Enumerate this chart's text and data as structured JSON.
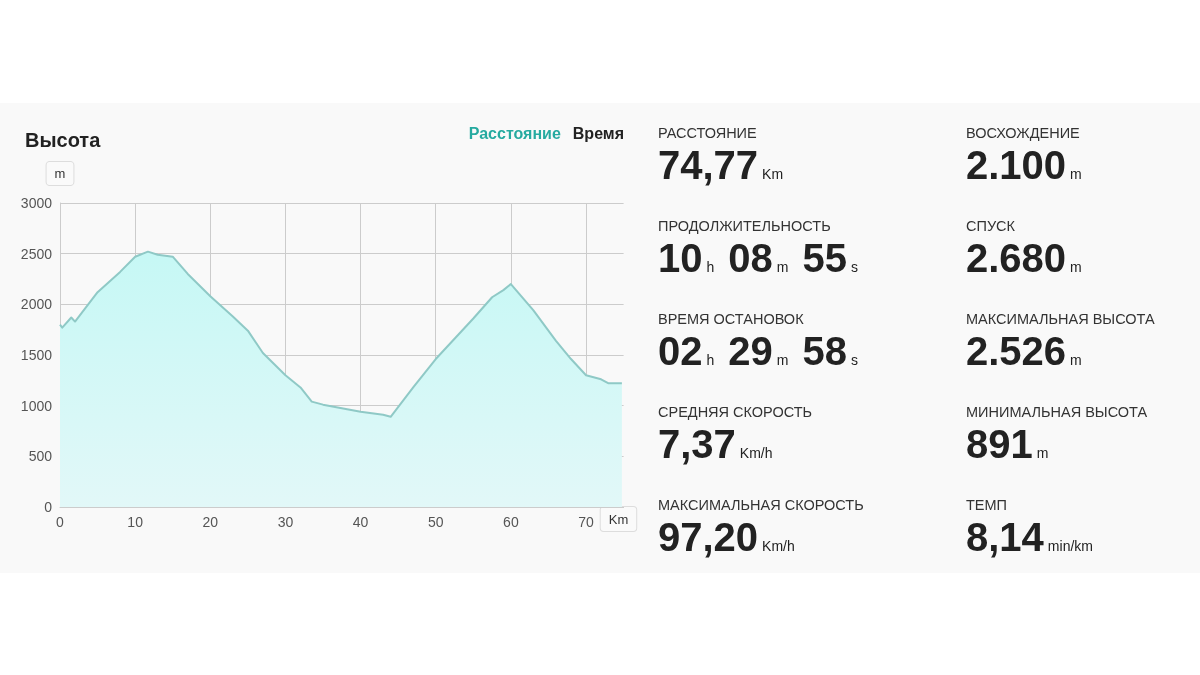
{
  "chart_data": [
    {
      "type": "area",
      "title": "Высота",
      "ylabel": "m",
      "xlabel": "Km",
      "annotations": [
        "Расстояние",
        "Время"
      ],
      "x": [
        0,
        0.3,
        1.5,
        2,
        5,
        8,
        10,
        11.7,
        13,
        15,
        17,
        20,
        23,
        25,
        27,
        30,
        32,
        33.5,
        35,
        40,
        43,
        44,
        47,
        50,
        55,
        57.5,
        59,
        60,
        63,
        66,
        68,
        70,
        72,
        73,
        74.77
      ],
      "series": [
        {
          "color": "#8fc9c6",
          "values": [
            1800,
            1770,
            1870,
            1830,
            2120,
            2320,
            2470,
            2520,
            2490,
            2470,
            2300,
            2080,
            1880,
            1740,
            1520,
            1300,
            1180,
            1040,
            1010,
            940,
            910,
            890,
            1180,
            1460,
            1860,
            2070,
            2140,
            2200,
            1940,
            1640,
            1460,
            1300,
            1260,
            1220,
            1220
          ]
        }
      ],
      "xlim": [
        0,
        75
      ],
      "xticks": [
        0,
        10,
        20,
        30,
        40,
        50,
        60,
        70
      ],
      "ylim": [
        0,
        3000
      ],
      "yticks": [
        0,
        500,
        1000,
        1500,
        2000,
        2500,
        3000
      ],
      "grid": true,
      "marker": "none"
    },
    {
      "type": "other",
      "annotations": [
        "РАССТОЯНИЕ",
        "74,77",
        "Km"
      ]
    },
    {
      "type": "other",
      "annotations": [
        "ВОСХОЖДЕНИЕ",
        "2.100",
        "m"
      ]
    },
    {
      "type": "other",
      "annotations": [
        "ПРОДОЛЖИТЕЛЬНОСТЬ",
        "10",
        "h",
        "08",
        "m",
        "55",
        "s"
      ]
    },
    {
      "type": "other",
      "annotations": [
        "СПУСК",
        "2.680",
        "m"
      ]
    },
    {
      "type": "other",
      "annotations": [
        "ВРЕМЯ ОСТАНОВОК",
        "02",
        "h",
        "29",
        "m",
        "58",
        "s"
      ]
    },
    {
      "type": "other",
      "annotations": [
        "МАКСИМАЛЬНАЯ ВЫСОТА",
        "2.526",
        "m"
      ]
    },
    {
      "type": "other",
      "annotations": [
        "СРЕДНЯЯ СКОРОСТЬ",
        "7,37",
        "Km/h"
      ]
    },
    {
      "type": "other",
      "annotations": [
        "МИНИМАЛЬНАЯ ВЫСОТА",
        "891",
        "m"
      ]
    },
    {
      "type": "other",
      "annotations": [
        "МАКСИМАЛЬНАЯ СКОРОСТЬ",
        "97,20",
        "Km/h"
      ]
    },
    {
      "type": "other",
      "annotations": [
        "ТЕМП",
        "8,14",
        "min/km"
      ]
    }
  ]
}
